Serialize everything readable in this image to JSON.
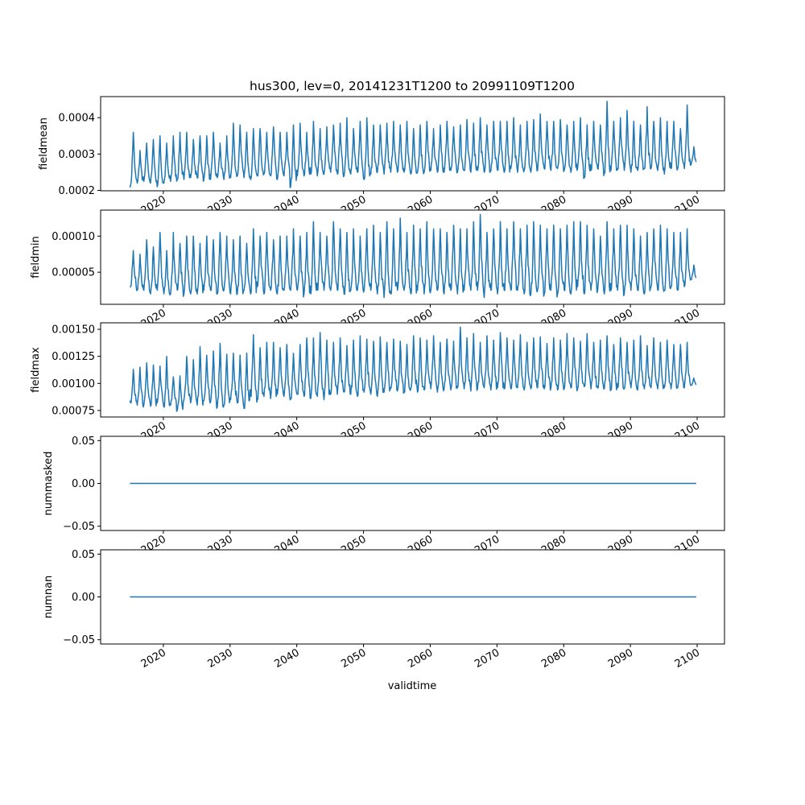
{
  "chart_data": {
    "type": "line",
    "title": "hus300, lev=0, 20141231T1200 to 20991109T1200",
    "xlabel": "validtime",
    "x_ticks": [
      "2020",
      "2030",
      "2040",
      "2050",
      "2060",
      "2070",
      "2080",
      "2090",
      "2100"
    ],
    "x_tick_values": [
      2020,
      2030,
      2040,
      2050,
      2060,
      2070,
      2080,
      2090,
      2100
    ],
    "xlim": [
      2010.6,
      2104.1
    ],
    "x_start": 2015.0,
    "x_end": 2099.86,
    "line_color": "#1f77b4",
    "sampling": "monthly; series described by annual peak and trough values",
    "panels": [
      {
        "ylabel": "fieldmean",
        "ylim": [
          0.000199,
          0.000458
        ],
        "y_ticks": [
          "0.0002",
          "0.0003",
          "0.0004"
        ],
        "y_tick_values": [
          0.0002,
          0.0003,
          0.0004
        ],
        "scale": 0.0001,
        "annual_peaks": [
          3.6,
          3.1,
          3.3,
          3.4,
          3.5,
          3.3,
          3.5,
          3.6,
          3.6,
          3.4,
          3.5,
          3.5,
          3.6,
          3.3,
          3.5,
          3.85,
          3.8,
          3.6,
          3.7,
          3.7,
          3.6,
          3.75,
          3.6,
          3.6,
          3.8,
          3.85,
          3.6,
          3.9,
          3.7,
          3.75,
          3.8,
          3.85,
          4.0,
          3.7,
          3.9,
          4.0,
          3.8,
          3.8,
          3.85,
          3.9,
          3.8,
          3.9,
          3.7,
          3.8,
          3.9,
          3.7,
          3.8,
          3.9,
          3.75,
          3.8,
          3.95,
          3.85,
          4.0,
          3.8,
          3.9,
          3.9,
          3.9,
          4.0,
          3.8,
          3.9,
          3.95,
          4.1,
          3.9,
          3.9,
          3.95,
          3.8,
          3.9,
          4.0,
          3.8,
          3.9,
          3.8,
          4.45,
          3.9,
          4.0,
          4.2,
          3.9,
          3.8,
          4.3,
          3.9,
          4.0,
          3.9,
          3.9,
          3.7,
          4.35,
          3.2
        ],
        "annual_troughs": [
          2.15,
          2.2,
          2.25,
          2.2,
          2.1,
          2.2,
          2.25,
          2.3,
          2.3,
          2.35,
          2.35,
          2.3,
          2.3,
          2.35,
          2.3,
          2.35,
          2.4,
          2.35,
          2.3,
          2.4,
          2.45,
          2.4,
          2.3,
          2.4,
          2.1,
          2.4,
          2.4,
          2.45,
          2.4,
          2.45,
          2.5,
          2.45,
          2.4,
          2.45,
          2.5,
          2.3,
          2.45,
          2.5,
          2.45,
          2.5,
          2.5,
          2.5,
          2.45,
          2.5,
          2.5,
          2.55,
          2.5,
          2.5,
          2.55,
          2.5,
          2.55,
          2.5,
          2.55,
          2.5,
          2.55,
          2.55,
          2.5,
          2.6,
          2.5,
          2.55,
          2.5,
          2.55,
          2.6,
          2.55,
          2.6,
          2.55,
          2.5,
          2.6,
          2.35,
          2.55,
          2.6,
          2.5,
          2.55,
          2.6,
          2.55,
          2.5,
          2.55,
          2.6,
          2.6,
          2.55,
          2.45,
          2.6,
          2.6,
          2.6,
          2.7
        ]
      },
      {
        "ylabel": "fieldmin",
        "ylim": [
          5.6e-06,
          0.000136
        ],
        "y_ticks": [
          "0.00005",
          "0.00010"
        ],
        "y_tick_values": [
          5e-05,
          0.0001
        ],
        "scale": 1e-05,
        "annual_peaks": [
          8,
          7.5,
          9.5,
          8.5,
          10.5,
          8,
          10.5,
          9,
          10,
          10,
          9,
          10,
          9.5,
          10.5,
          10,
          9.5,
          10,
          9,
          11,
          10,
          10.5,
          9.5,
          10,
          10,
          11,
          10,
          10.5,
          12,
          10.5,
          10,
          12,
          11,
          10.5,
          11,
          10,
          11,
          11.5,
          10.5,
          12,
          11,
          12.5,
          10.5,
          11.5,
          11,
          12,
          11,
          11,
          10.5,
          11.5,
          11,
          11,
          12,
          13,
          10.5,
          11,
          12,
          11,
          12,
          11,
          11.5,
          12,
          11.5,
          11,
          11.5,
          11,
          11.5,
          12,
          12,
          11.5,
          11,
          10,
          12,
          11,
          11.5,
          11.5,
          11,
          10,
          10.5,
          11,
          11.5,
          11,
          10.5,
          10.5,
          11,
          6
        ],
        "annual_troughs": [
          3,
          2.5,
          2.5,
          2,
          2.5,
          2,
          2,
          2.5,
          2,
          2,
          2,
          2.5,
          2.5,
          2,
          2.5,
          2,
          2,
          2.5,
          2,
          3,
          2,
          2.5,
          2,
          2.5,
          2.5,
          2.5,
          2,
          2,
          2.5,
          2.5,
          2.5,
          2.5,
          2,
          2.5,
          2.5,
          2.5,
          2.5,
          2,
          1.5,
          2,
          2.5,
          2.5,
          2,
          2.5,
          2,
          2.5,
          2.5,
          2,
          2.5,
          2,
          2.5,
          2.5,
          2.5,
          1.5,
          2.5,
          2,
          2.5,
          2.5,
          2.5,
          2,
          2,
          2.5,
          2,
          2.5,
          2,
          2.5,
          2,
          3,
          2,
          2.5,
          2.5,
          2,
          2.5,
          2.5,
          2,
          2.5,
          2.5,
          2,
          3,
          2.5,
          2.5,
          3,
          2.5,
          3,
          4
        ]
      },
      {
        "ylabel": "fieldmax",
        "ylim": [
          0.00069,
          0.00156
        ],
        "y_ticks": [
          "0.00075",
          "0.00100",
          "0.00125",
          "0.00150"
        ],
        "y_tick_values": [
          0.00075,
          0.001,
          0.00125,
          0.0015
        ],
        "scale": 0.001,
        "annual_peaks": [
          1.13,
          1.15,
          1.19,
          1.17,
          1.16,
          1.25,
          1.06,
          1.07,
          1.25,
          1.22,
          1.34,
          1.26,
          1.3,
          1.37,
          1.27,
          1.28,
          1.26,
          1.28,
          1.45,
          1.33,
          1.38,
          1.38,
          1.33,
          1.36,
          1.28,
          1.36,
          1.42,
          1.42,
          1.47,
          1.4,
          1.38,
          1.42,
          1.35,
          1.4,
          1.44,
          1.41,
          1.39,
          1.43,
          1.38,
          1.41,
          1.39,
          1.36,
          1.44,
          1.42,
          1.4,
          1.44,
          1.38,
          1.41,
          1.39,
          1.52,
          1.42,
          1.46,
          1.38,
          1.44,
          1.4,
          1.47,
          1.42,
          1.4,
          1.45,
          1.38,
          1.42,
          1.43,
          1.37,
          1.42,
          1.4,
          1.46,
          1.42,
          1.39,
          1.46,
          1.38,
          1.4,
          1.44,
          1.36,
          1.42,
          1.38,
          1.4,
          1.44,
          1.35,
          1.42,
          1.38,
          1.4,
          1.36,
          1.36,
          1.38,
          1.05
        ],
        "annual_troughs": [
          0.82,
          0.8,
          0.8,
          0.79,
          0.82,
          0.78,
          0.8,
          0.75,
          0.85,
          0.82,
          0.8,
          0.84,
          0.83,
          0.78,
          0.8,
          0.85,
          0.82,
          0.77,
          0.88,
          0.85,
          0.88,
          0.86,
          0.9,
          0.88,
          0.86,
          0.9,
          0.88,
          0.86,
          0.88,
          0.85,
          0.9,
          0.9,
          0.92,
          0.9,
          0.88,
          0.92,
          0.9,
          0.88,
          0.92,
          0.95,
          0.93,
          0.92,
          0.95,
          0.92,
          0.94,
          0.95,
          0.92,
          0.95,
          0.94,
          0.96,
          0.95,
          0.93,
          0.95,
          0.96,
          0.94,
          0.96,
          0.95,
          0.95,
          0.96,
          0.94,
          0.95,
          0.96,
          0.95,
          0.96,
          0.94,
          0.95,
          0.96,
          0.95,
          0.97,
          0.95,
          0.96,
          0.95,
          0.94,
          0.96,
          0.95,
          0.96,
          0.94,
          0.95,
          0.96,
          0.95,
          0.96,
          0.95,
          0.96,
          0.96,
          0.98
        ]
      },
      {
        "ylabel": "nummasked",
        "ylim": [
          -0.055,
          0.055
        ],
        "y_ticks": [
          "−0.05",
          "0.00",
          "0.05"
        ],
        "y_tick_values": [
          -0.05,
          0,
          0.05
        ],
        "constant_value": 0
      },
      {
        "ylabel": "numnan",
        "ylim": [
          -0.055,
          0.055
        ],
        "y_ticks": [
          "−0.05",
          "0.00",
          "0.05"
        ],
        "y_tick_values": [
          -0.05,
          0,
          0.05
        ],
        "constant_value": 0
      }
    ]
  }
}
